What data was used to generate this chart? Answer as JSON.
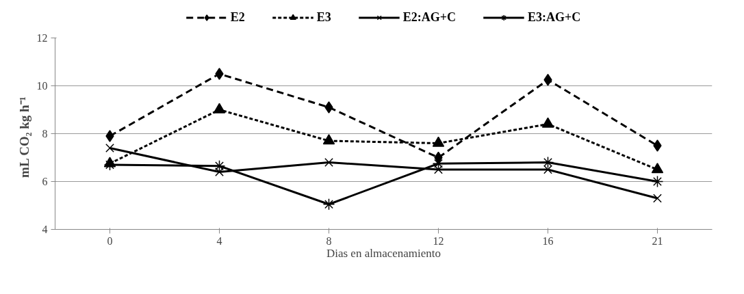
{
  "chart_data": {
    "type": "line",
    "xlabel": "Dias en almacenamiento",
    "ylabel": "mL CO₂  kg  h⁻¹",
    "categories": [
      "0",
      "4",
      "8",
      "12",
      "16",
      "21"
    ],
    "series": [
      {
        "name": "E2",
        "color": "#000000",
        "marker": "diamond",
        "line_style": "dashed",
        "values": [
          7.9,
          10.5,
          9.1,
          7.0,
          10.25,
          7.5
        ]
      },
      {
        "name": "E3",
        "color": "#000000",
        "marker": "triangle",
        "line_style": "dotted",
        "values": [
          6.75,
          9.0,
          7.7,
          7.6,
          8.4,
          6.5
        ]
      },
      {
        "name": "E2:AG+C",
        "color": "#000000",
        "marker": "cross",
        "line_style": "solid",
        "values": [
          7.4,
          6.4,
          6.8,
          6.5,
          6.5,
          5.3
        ]
      },
      {
        "name": "E3:AG+C",
        "color": "#000000",
        "marker": "cross",
        "line_style": "solid",
        "values": [
          6.7,
          6.65,
          5.05,
          6.75,
          6.8,
          6.0
        ]
      }
    ],
    "ylim": [
      4,
      12
    ],
    "yticks": [
      4,
      6,
      8,
      10,
      12
    ],
    "grid": "y",
    "legend": "top"
  }
}
